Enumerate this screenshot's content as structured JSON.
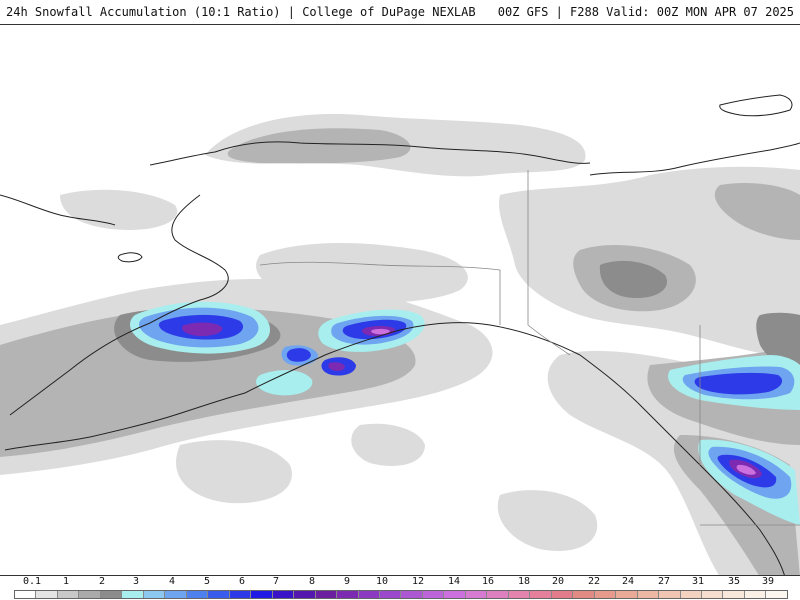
{
  "header": {
    "title_left": "24h Snowfall Accumulation (10:1 Ratio) | College of DuPage NEXLAB",
    "title_right": "00Z GFS | F288 Valid: 00Z MON APR 07 2025"
  },
  "legend": {
    "labels": [
      "0.1",
      "1",
      "2",
      "3",
      "4",
      "5",
      "6",
      "7",
      "8",
      "9",
      "10",
      "12",
      "14",
      "16",
      "18",
      "20",
      "22",
      "24",
      "27",
      "31",
      "35",
      "39"
    ],
    "colors": [
      "#ffffff",
      "#e4e4e4",
      "#c8c8c8",
      "#aaaaaa",
      "#8c8c8c",
      "#a8eeee",
      "#8cc8f0",
      "#6ea4f0",
      "#4e80ee",
      "#3a5cec",
      "#2c3ae8",
      "#1f1ae6",
      "#3a12c8",
      "#5418b0",
      "#6c1ea0",
      "#7c2ab2",
      "#8c3ac2",
      "#9c48cc",
      "#ac58d2",
      "#bc64da",
      "#cc70e0",
      "#d67ad2",
      "#de80c0",
      "#e484ae",
      "#e4809c",
      "#e27c8a",
      "#e28a84",
      "#e69a8c",
      "#eaaa98",
      "#ecb8a4",
      "#f0c6b2",
      "#f4d2c0",
      "#f6dece",
      "#f8e8dc",
      "#faf0e6",
      "#fcf6f0"
    ]
  },
  "map": {
    "colors": {
      "light_gray": "#dcdcdc",
      "mid_gray": "#b4b4b4",
      "dark_gray": "#8c8c8c",
      "cyan": "#a8eeee",
      "light_blue": "#6ea4f0",
      "blue": "#2c3ae8",
      "purple": "#7c2ab2",
      "magenta": "#cc70e0",
      "coast": "#222222",
      "border": "#888888"
    }
  }
}
